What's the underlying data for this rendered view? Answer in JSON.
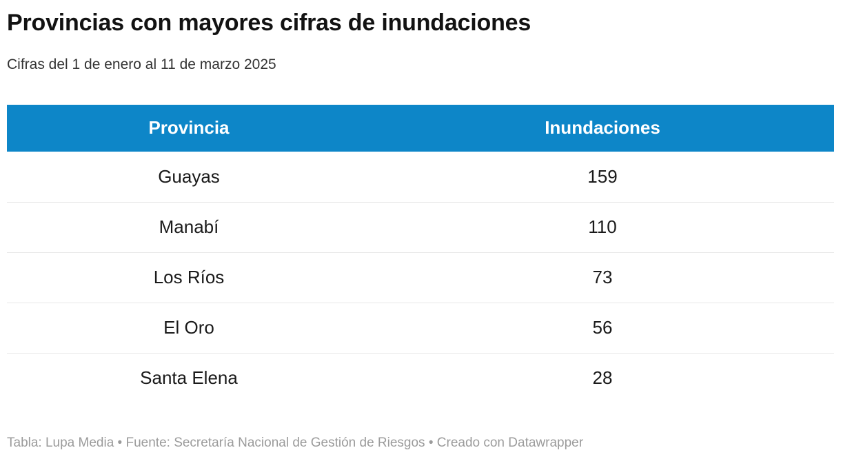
{
  "header": {
    "title": "Provincias con mayores cifras de inundaciones",
    "subtitle": "Cifras del 1 de enero al 11 de marzo 2025"
  },
  "table": {
    "columns": [
      "Provincia",
      "Inundaciones"
    ],
    "rows": [
      [
        "Guayas",
        "159"
      ],
      [
        "Manabí",
        "110"
      ],
      [
        "Los Ríos",
        "73"
      ],
      [
        "El Oro",
        "56"
      ],
      [
        "Santa Elena",
        "28"
      ]
    ]
  },
  "footer": {
    "text": "Tabla: Lupa Media • Fuente: Secretaría Nacional de Gestión de Riesgos • Creado con Datawrapper"
  },
  "colors": {
    "header_bg": "#0d86c8",
    "header_text": "#ffffff",
    "row_divider": "#e8e8e8",
    "title_text": "#121212",
    "footer_text": "#9b9b9b"
  },
  "chart_data": {
    "type": "table",
    "title": "Provincias con mayores cifras de inundaciones",
    "subtitle": "Cifras del 1 de enero al 11 de marzo 2025",
    "columns": [
      "Provincia",
      "Inundaciones"
    ],
    "rows": [
      [
        "Guayas",
        159
      ],
      [
        "Manabí",
        110
      ],
      [
        "Los Ríos",
        73
      ],
      [
        "El Oro",
        56
      ],
      [
        "Santa Elena",
        28
      ]
    ],
    "attribution": {
      "table_credit": "Tabla: Lupa Media",
      "source": "Fuente: Secretaría Nacional de Gestión de Riesgos",
      "tool": "Creado con Datawrapper"
    },
    "layout_hints": {
      "header_background": "#0d86c8",
      "cell_alignment": "center",
      "grid": "horizontal-dividers-only"
    }
  }
}
